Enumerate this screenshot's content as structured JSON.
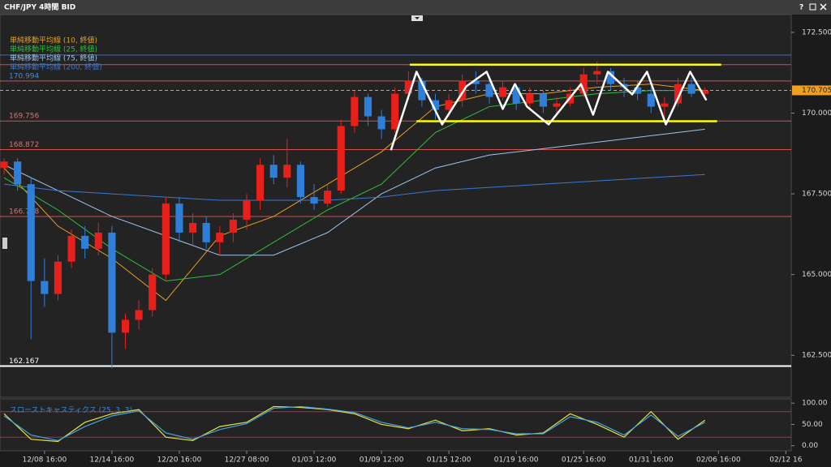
{
  "window": {
    "help": "?"
  },
  "chart_data": [
    {
      "type": "candlestick",
      "title": "CHF/JPY 4時間 BID",
      "x": [
        0,
        1,
        2,
        3,
        4,
        5,
        6,
        7,
        8,
        9,
        10,
        11,
        12,
        13,
        14,
        15,
        16,
        17,
        18,
        19,
        20,
        21,
        22,
        23,
        24,
        25,
        26,
        27,
        28,
        29,
        30,
        31,
        32,
        33,
        34,
        35,
        36,
        37,
        38,
        39,
        40,
        41,
        42,
        43,
        44,
        45,
        46,
        47,
        48,
        49,
        50,
        51,
        52
      ],
      "open": [
        168.3,
        168.5,
        167.8,
        164.8,
        164.4,
        165.4,
        166.2,
        165.8,
        166.3,
        163.2,
        163.6,
        163.9,
        165.0,
        167.2,
        166.3,
        166.6,
        166.0,
        166.3,
        166.7,
        167.3,
        168.4,
        168.0,
        168.4,
        167.4,
        167.2,
        167.6,
        169.6,
        170.5,
        169.9,
        169.5,
        170.6,
        171.0,
        170.4,
        170.1,
        170.4,
        171.0,
        170.9,
        170.5,
        170.8,
        170.3,
        170.6,
        170.2,
        170.3,
        170.6,
        171.2,
        171.3,
        170.9,
        170.8,
        170.6,
        170.2,
        170.3,
        170.9,
        170.6
      ],
      "high": [
        168.6,
        168.6,
        168.0,
        165.5,
        165.6,
        166.4,
        166.5,
        166.6,
        166.5,
        163.8,
        164.2,
        165.2,
        167.4,
        167.4,
        166.9,
        166.8,
        166.5,
        166.9,
        167.5,
        168.6,
        168.7,
        169.2,
        168.5,
        167.8,
        167.8,
        169.8,
        170.7,
        170.6,
        170.1,
        170.8,
        171.3,
        171.1,
        170.6,
        170.6,
        171.2,
        171.3,
        171.0,
        171.0,
        170.9,
        170.8,
        170.7,
        170.5,
        170.8,
        171.4,
        171.6,
        171.4,
        171.1,
        171.0,
        170.8,
        170.5,
        171.1,
        171.1,
        170.8
      ],
      "low": [
        168.1,
        167.6,
        163.0,
        164.0,
        164.2,
        165.2,
        165.5,
        165.6,
        162.1,
        162.7,
        163.3,
        163.7,
        164.8,
        166.0,
        165.9,
        165.8,
        165.6,
        166.0,
        166.4,
        167.0,
        167.8,
        167.7,
        167.2,
        167.0,
        167.1,
        167.5,
        169.4,
        169.6,
        169.2,
        169.4,
        170.4,
        170.2,
        169.8,
        169.9,
        170.2,
        170.6,
        170.3,
        170.4,
        170.1,
        170.1,
        170.0,
        169.9,
        170.2,
        170.5,
        170.9,
        170.7,
        170.5,
        170.4,
        170.0,
        169.8,
        170.2,
        170.5,
        170.5
      ],
      "close": [
        168.5,
        167.8,
        164.8,
        164.4,
        165.4,
        166.2,
        165.8,
        166.3,
        163.2,
        163.6,
        163.9,
        165.0,
        167.2,
        166.3,
        166.6,
        166.0,
        166.3,
        166.7,
        167.3,
        168.4,
        168.0,
        168.4,
        167.4,
        167.2,
        167.6,
        169.6,
        170.5,
        169.9,
        169.5,
        170.6,
        171.0,
        170.4,
        170.1,
        170.4,
        171.0,
        170.9,
        170.5,
        170.8,
        170.3,
        170.6,
        170.2,
        170.3,
        170.6,
        171.2,
        171.3,
        170.9,
        170.8,
        170.6,
        170.2,
        170.3,
        170.9,
        170.6,
        170.7
      ],
      "up_color": "#e8201c",
      "down_color": "#2f7fd8",
      "xlim": [
        0.3,
        58.4
      ],
      "xticks": [
        {
          "value": 3,
          "label": "12/08 16:00"
        },
        {
          "value": 8,
          "label": "12/14 16:00"
        },
        {
          "value": 13,
          "label": "12/20 16:00"
        },
        {
          "value": 18,
          "label": "12/27 08:00"
        },
        {
          "value": 23,
          "label": "01/03 12:00"
        },
        {
          "value": 28,
          "label": "01/09 12:00"
        },
        {
          "value": 33,
          "label": "01/15 12:00"
        },
        {
          "value": 38,
          "label": "01/19 16:00"
        },
        {
          "value": 43,
          "label": "01/25 16:00"
        },
        {
          "value": 48,
          "label": "01/31 16:00"
        },
        {
          "value": 53,
          "label": "02/06 16:00"
        },
        {
          "value": 58,
          "label": "02/12 16"
        }
      ],
      "ylim": [
        161.2,
        172.8
      ],
      "yticks": [
        {
          "value": 172.5,
          "label": "172.500"
        },
        {
          "value": 170,
          "label": "170.000"
        },
        {
          "value": 167.5,
          "label": "167.500"
        },
        {
          "value": 165,
          "label": "165.000"
        },
        {
          "value": 162.5,
          "label": "162.500"
        }
      ],
      "series": [
        {
          "name": "単純移動平均線 (10, 終値)",
          "color": "#e8a020",
          "x": [
            0,
            4,
            8,
            12,
            16,
            20,
            24,
            28,
            32,
            36,
            40,
            44,
            48,
            52
          ],
          "values": [
            168.3,
            166.5,
            165.5,
            164.2,
            166.2,
            166.8,
            167.8,
            168.8,
            170.2,
            170.6,
            170.6,
            170.8,
            170.9,
            170.7
          ]
        },
        {
          "name": "単純移動平均線 (25, 終値)",
          "color": "#2fbf3a",
          "x": [
            0,
            4,
            8,
            12,
            16,
            20,
            24,
            28,
            32,
            36,
            40,
            44,
            48,
            52
          ],
          "values": [
            168.0,
            167.0,
            165.8,
            164.8,
            165.0,
            166.0,
            167.0,
            167.8,
            169.4,
            170.2,
            170.4,
            170.6,
            170.7,
            170.7
          ]
        },
        {
          "name": "単純移動平均線 (75, 終値)",
          "color": "#9cc4ec",
          "x": [
            0,
            4,
            8,
            12,
            16,
            20,
            24,
            28,
            32,
            36,
            40,
            44,
            48,
            52
          ],
          "values": [
            168.4,
            167.6,
            166.8,
            166.2,
            165.6,
            165.6,
            166.3,
            167.5,
            168.3,
            168.7,
            168.9,
            169.1,
            169.3,
            169.5
          ]
        },
        {
          "name": "単純移動平均線 (200, 終値)",
          "color": "#3a78d0",
          "x": [
            0,
            4,
            8,
            12,
            16,
            20,
            24,
            28,
            32,
            36,
            40,
            44,
            48,
            52
          ],
          "values": [
            167.8,
            167.6,
            167.5,
            167.4,
            167.3,
            167.3,
            167.3,
            167.4,
            167.6,
            167.7,
            167.8,
            167.9,
            168.0,
            168.1
          ]
        }
      ],
      "levels": [
        {
          "value": 171.8,
          "color": "#3a6ad0",
          "show_label": false
        },
        {
          "value": 171.5,
          "color": "#d05050",
          "show_label": false
        },
        {
          "value": 170.994,
          "color": "#d05050",
          "show_label": true,
          "label_color": "#4a86d0"
        },
        {
          "value": 169.756,
          "color": "#d05050",
          "show_label": true,
          "label_color": "#e07070"
        },
        {
          "value": 168.872,
          "color": "#d05050",
          "show_label": true,
          "label_color": "#e07070"
        },
        {
          "value": 166.798,
          "color": "#d05050",
          "show_label": true,
          "label_color": "#e07070"
        },
        {
          "value": 162.167,
          "color": "#ffffff",
          "show_label": true,
          "label_color": "#ffffff"
        }
      ],
      "last_price": {
        "value": 170.705,
        "color": "#f0a020"
      },
      "channel": {
        "color": "#ffff00",
        "lines": [
          {
            "x": [
              30.1,
              53.2
            ],
            "y": [
              171.5,
              171.5
            ]
          },
          {
            "x": [
              30.6,
              52.9
            ],
            "y": [
              169.75,
              169.75
            ]
          }
        ]
      },
      "zigzag": {
        "color": "#ffffff",
        "x": [
          28.7,
          30.6,
          32.5,
          34.3,
          35.8,
          37.0,
          37.9,
          38.8,
          40.4,
          42.8,
          43.7,
          44.8,
          46.6,
          47.7,
          49.1,
          50.9,
          52.1
        ],
        "y": [
          168.85,
          171.28,
          169.65,
          170.83,
          171.28,
          170.13,
          170.9,
          170.2,
          169.65,
          170.9,
          169.95,
          171.28,
          170.58,
          171.28,
          169.65,
          171.28,
          170.4
        ]
      }
    },
    {
      "type": "line",
      "title": "スローストキャスティクス (25, 3, 3)",
      "x": [
        0,
        2,
        4,
        6,
        8,
        10,
        12,
        14,
        16,
        18,
        20,
        22,
        24,
        26,
        28,
        30,
        32,
        34,
        36,
        38,
        40,
        42,
        44,
        46,
        48,
        50,
        52
      ],
      "series": [
        {
          "color": "#e8e040",
          "values": [
            75,
            15,
            10,
            55,
            75,
            85,
            20,
            12,
            45,
            55,
            92,
            90,
            85,
            75,
            50,
            40,
            60,
            35,
            40,
            25,
            30,
            75,
            50,
            20,
            80,
            15,
            60
          ]
        },
        {
          "color": "#40a8e0",
          "values": [
            70,
            25,
            12,
            45,
            70,
            82,
            30,
            15,
            38,
            52,
            88,
            92,
            86,
            78,
            55,
            42,
            55,
            40,
            38,
            28,
            28,
            68,
            55,
            25,
            72,
            22,
            55
          ]
        }
      ],
      "ylim": [
        -12,
        110
      ],
      "yticks": [
        {
          "value": 100,
          "label": "100.00"
        },
        {
          "value": 50,
          "label": "50.00"
        },
        {
          "value": 0,
          "label": "0.00"
        }
      ],
      "levels": [
        {
          "value": 80,
          "color": "#b02a5a"
        },
        {
          "value": 20,
          "color": "#b02a5a"
        }
      ]
    }
  ]
}
